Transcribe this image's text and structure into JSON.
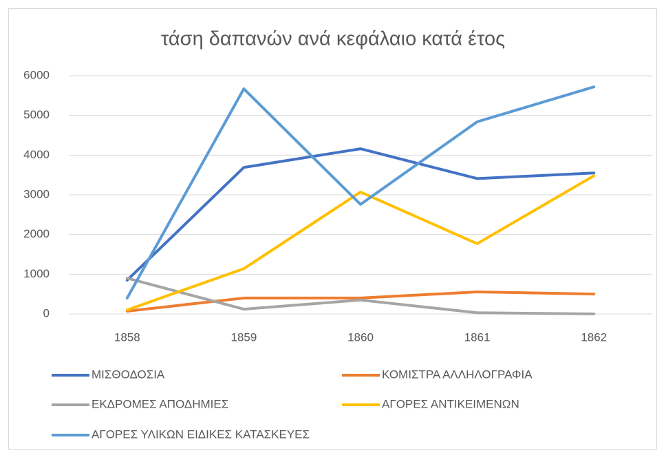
{
  "chart_data": {
    "type": "line",
    "title": "τάση δαπανών ανά κεφάλαιο κατά έτος",
    "categories": [
      "1858",
      "1859",
      "1860",
      "1861",
      "1862"
    ],
    "series": [
      {
        "name": "ΜΙΣΘΟΔΟΣΙΑ",
        "color": "#4472c4",
        "values": [
          850,
          3690,
          4160,
          3410,
          3550
        ]
      },
      {
        "name": "ΚΟΜΙΣΤΡΑ ΑΛΛΗΛΟΓΡΑΦΙΑ",
        "color": "#ed7d31",
        "values": [
          70,
          400,
          400,
          555,
          500
        ]
      },
      {
        "name": "ΕΚΔΡΟΜΕΣ ΑΠΟΔΗΜΙΕΣ",
        "color": "#a5a5a5",
        "values": [
          900,
          120,
          350,
          30,
          0
        ]
      },
      {
        "name": "ΑΓΟΡΕΣ ΑΝΤΙΚΕΙΜΕΝΩΝ",
        "color": "#ffc000",
        "values": [
          100,
          1140,
          3070,
          1770,
          3480
        ]
      },
      {
        "name": "ΑΓΟΡΕΣ ΥΛΙΚΩΝ ΕΙΔΙΚΕΣ ΚΑΤΑΣΚΕΥΕΣ",
        "color": "#5b9bd5",
        "values": [
          400,
          5670,
          2760,
          4840,
          5720
        ]
      }
    ],
    "ylim": [
      0,
      6000
    ],
    "yticks": [
      0,
      1000,
      2000,
      3000,
      4000,
      5000,
      6000
    ],
    "grid": true
  }
}
